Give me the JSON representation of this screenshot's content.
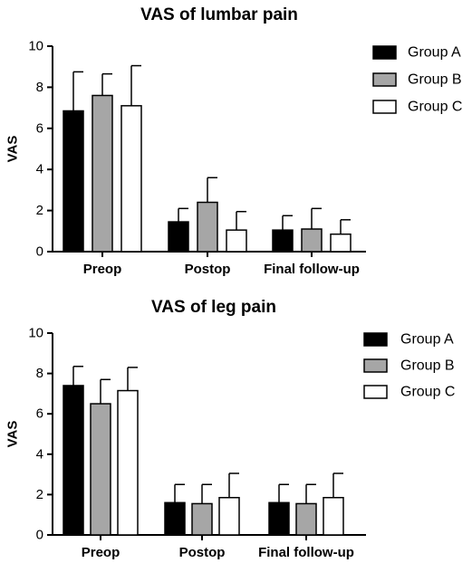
{
  "chart_data": [
    {
      "type": "bar",
      "title": "VAS of lumbar pain",
      "ylabel": "VAS",
      "xlabel": "",
      "ylim": [
        0,
        10
      ],
      "yticks": [
        0,
        2,
        4,
        6,
        8,
        10
      ],
      "categories": [
        "Preop",
        "Postop",
        "Final follow-up"
      ],
      "legend_position": "right",
      "series": [
        {
          "name": "Group A",
          "color": "#000000",
          "values": [
            6.85,
            1.45,
            1.05
          ],
          "errors": [
            1.9,
            0.65,
            0.7
          ]
        },
        {
          "name": "Group B",
          "color": "#a6a6a6",
          "values": [
            7.6,
            2.4,
            1.1
          ],
          "errors": [
            1.05,
            1.2,
            1.0
          ]
        },
        {
          "name": "Group C",
          "color": "#ffffff",
          "values": [
            7.1,
            1.05,
            0.85
          ],
          "errors": [
            1.95,
            0.9,
            0.7
          ]
        }
      ]
    },
    {
      "type": "bar",
      "title": "VAS of leg pain",
      "ylabel": "VAS",
      "xlabel": "",
      "ylim": [
        0,
        10
      ],
      "yticks": [
        0,
        2,
        4,
        6,
        8,
        10
      ],
      "categories": [
        "Preop",
        "Postop",
        "Final follow-up"
      ],
      "legend_position": "right",
      "series": [
        {
          "name": "Group A",
          "color": "#000000",
          "values": [
            7.4,
            1.6,
            1.6
          ],
          "errors": [
            0.95,
            0.9,
            0.9
          ]
        },
        {
          "name": "Group B",
          "color": "#a6a6a6",
          "values": [
            6.5,
            1.55,
            1.55
          ],
          "errors": [
            1.2,
            0.95,
            0.95
          ]
        },
        {
          "name": "Group C",
          "color": "#ffffff",
          "values": [
            7.15,
            1.85,
            1.85
          ],
          "errors": [
            1.15,
            1.2,
            1.2
          ]
        }
      ]
    }
  ]
}
